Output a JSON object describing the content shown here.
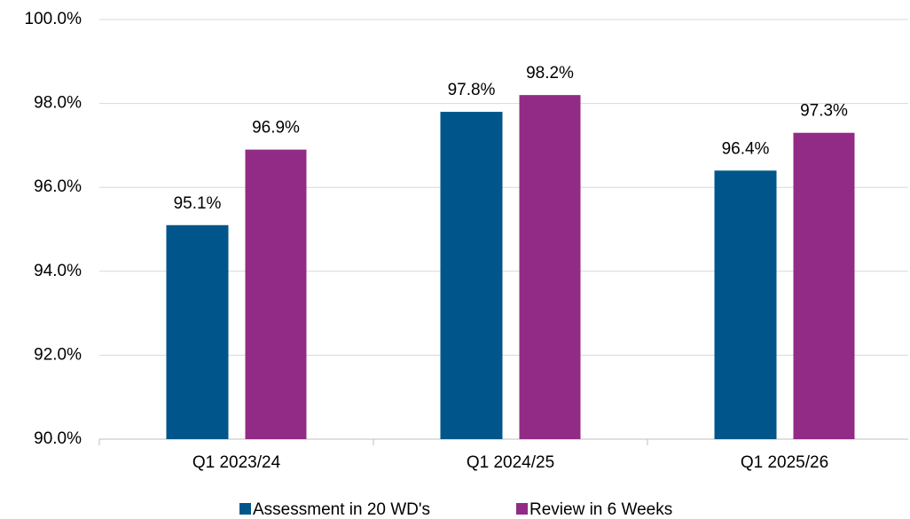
{
  "chart_data": {
    "type": "bar",
    "categories": [
      "Q1 2023/24",
      "Q1 2024/25",
      "Q1 2025/26"
    ],
    "series": [
      {
        "name": "Assessment in 20 WD's",
        "color": "#00568a",
        "values": [
          95.1,
          97.8,
          96.4
        ],
        "value_labels": [
          "95.1%",
          "97.8%",
          "96.4%"
        ]
      },
      {
        "name": "Review in 6 Weeks",
        "color": "#922b85",
        "values": [
          96.9,
          98.2,
          97.3
        ],
        "value_labels": [
          "96.9%",
          "98.2%",
          "97.3%"
        ]
      }
    ],
    "ylim": [
      90,
      100
    ],
    "yticks": [
      {
        "value": 90,
        "label": "90.0%"
      },
      {
        "value": 92,
        "label": "92.0%"
      },
      {
        "value": 94,
        "label": "94.0%"
      },
      {
        "value": 96,
        "label": "96.0%"
      },
      {
        "value": 98,
        "label": "98.0%"
      },
      {
        "value": 100,
        "label": "100.0%"
      }
    ],
    "grid": true,
    "legend": "bottom"
  }
}
